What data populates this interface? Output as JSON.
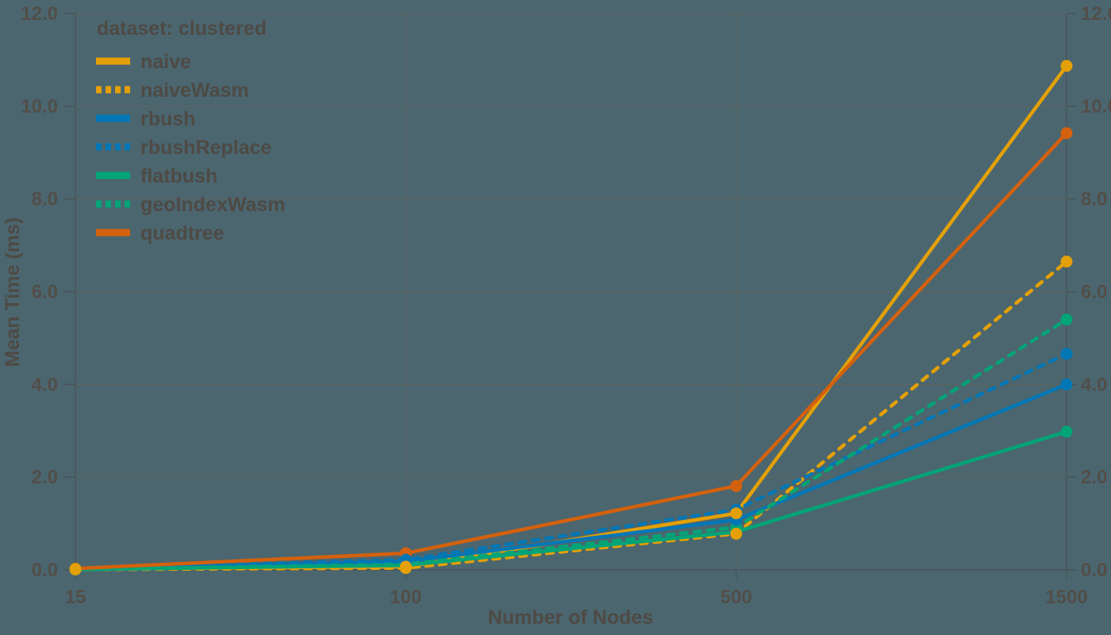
{
  "chart_data": {
    "type": "line",
    "legend_title": "dataset: clustered",
    "xlabel": "Number of Nodes",
    "ylabel": "Mean Time (ms)",
    "categories": [
      "15",
      "100",
      "500",
      "1500"
    ],
    "ylim": [
      0,
      12
    ],
    "ytick_step": 2,
    "ytick_labels": [
      "0.0",
      "2.0",
      "4.0",
      "6.0",
      "8.0",
      "10.0",
      "12.0"
    ],
    "grid": true,
    "legend_position": "top-left",
    "y_axis_sides": "both",
    "series": [
      {
        "name": "naive",
        "color": "#E3A008",
        "dash": false,
        "values": [
          0.02,
          0.07,
          1.22,
          10.87
        ]
      },
      {
        "name": "naiveWasm",
        "color": "#E3A008",
        "dash": true,
        "values": [
          0.01,
          0.04,
          0.78,
          6.65
        ]
      },
      {
        "name": "rbush",
        "color": "#0277B6",
        "dash": false,
        "values": [
          0.02,
          0.18,
          1.08,
          4.0
        ]
      },
      {
        "name": "rbushReplace",
        "color": "#0277B6",
        "dash": true,
        "values": [
          0.02,
          0.22,
          1.3,
          4.66
        ]
      },
      {
        "name": "flatbush",
        "color": "#03A477",
        "dash": false,
        "values": [
          0.01,
          0.1,
          0.82,
          2.98
        ]
      },
      {
        "name": "geoIndexWasm",
        "color": "#03A477",
        "dash": true,
        "values": [
          0.01,
          0.12,
          0.92,
          5.4
        ]
      },
      {
        "name": "quadtree",
        "color": "#D4610D",
        "dash": false,
        "values": [
          0.03,
          0.36,
          1.81,
          9.42
        ]
      }
    ],
    "colors": {
      "background": "#4B666F",
      "grid": "#63635B",
      "axis": "#4A5358",
      "text": "#4E4A45",
      "tick_text": "#524E49"
    }
  }
}
